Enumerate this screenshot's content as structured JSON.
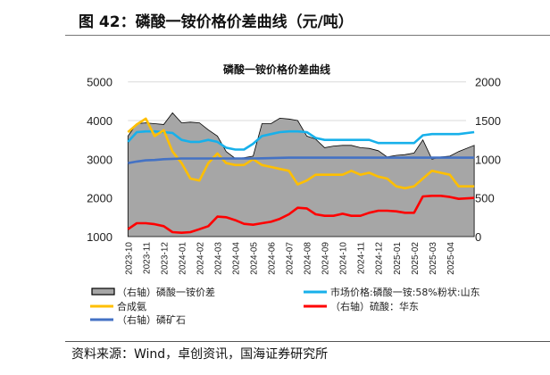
{
  "figure_title": "图 42：磷酸一铵价格价差曲线（元/吨）",
  "source": "资料来源：Wind，卓创资讯，国海证券研究所",
  "chart_data": {
    "type": "line",
    "title": "磷酸一铵价格价差曲线",
    "left_axis": {
      "ylim": [
        1000,
        5000
      ],
      "ticks": [
        "1000",
        "2000",
        "3000",
        "4000",
        "5000"
      ]
    },
    "right_axis": {
      "ylim": [
        0,
        2000
      ],
      "ticks": [
        "0",
        "500",
        "1000",
        "1500",
        "2000"
      ]
    },
    "x_ticks": [
      "2023-10",
      "2023-11",
      "2023-12",
      "2024-01",
      "2024-02",
      "2024-03",
      "2024-04",
      "2024-05",
      "2024-06",
      "2024-07",
      "2024-08",
      "2024-09",
      "2024-10",
      "2024-11",
      "2024-12",
      "2025-01",
      "2025-02",
      "2025-03",
      "2025-04"
    ],
    "grid": "horizontal",
    "legend_placement": "bottom",
    "x": [
      "2023-10-01",
      "2023-10-16",
      "2023-11-01",
      "2023-11-16",
      "2023-12-01",
      "2023-12-16",
      "2024-01-01",
      "2024-01-16",
      "2024-02-01",
      "2024-02-16",
      "2024-03-01",
      "2024-03-16",
      "2024-04-01",
      "2024-04-16",
      "2024-05-01",
      "2024-05-16",
      "2024-06-01",
      "2024-06-16",
      "2024-07-01",
      "2024-07-16",
      "2024-08-01",
      "2024-08-16",
      "2024-09-01",
      "2024-09-16",
      "2024-10-01",
      "2024-10-16",
      "2024-11-01",
      "2024-11-16",
      "2024-12-01",
      "2024-12-16",
      "2025-01-01",
      "2025-01-16",
      "2025-02-01",
      "2025-02-16",
      "2025-03-01",
      "2025-03-16",
      "2025-04-01",
      "2025-04-16",
      "2025-05-12"
    ],
    "series": [
      {
        "name": "（右轴）磷酸一铵价差",
        "axis": "right",
        "kind": "area",
        "color": "#a6a6a6",
        "values": [
          1300,
          1460,
          1470,
          1460,
          1450,
          1600,
          1470,
          1480,
          1470,
          1380,
          1300,
          1100,
          1010,
          1020,
          1040,
          1460,
          1460,
          1530,
          1520,
          1500,
          1300,
          1260,
          1150,
          1170,
          1180,
          1180,
          1150,
          1140,
          1110,
          1030,
          1050,
          1060,
          1080,
          1250,
          1000,
          1030,
          1040,
          1100,
          1180
        ]
      },
      {
        "name": "市场价格:磷酸一铵:58%粉状:山东",
        "axis": "left",
        "kind": "line",
        "color": "#17b0ea",
        "values": [
          3450,
          3700,
          3720,
          3720,
          3700,
          3680,
          3500,
          3450,
          3450,
          3500,
          3450,
          3300,
          3250,
          3250,
          3400,
          3600,
          3650,
          3700,
          3720,
          3720,
          3700,
          3550,
          3500,
          3500,
          3500,
          3500,
          3500,
          3500,
          3420,
          3420,
          3420,
          3420,
          3420,
          3620,
          3650,
          3650,
          3650,
          3650,
          3700
        ]
      },
      {
        "name": "合成氨",
        "axis": "left",
        "kind": "line",
        "color": "#ffbf00",
        "values": [
          3700,
          3900,
          4050,
          3600,
          3750,
          3200,
          2900,
          2500,
          2450,
          2900,
          3150,
          2900,
          2850,
          2850,
          3000,
          2850,
          2800,
          2750,
          2700,
          2350,
          2450,
          2600,
          2600,
          2600,
          2600,
          2700,
          2600,
          2650,
          2550,
          2500,
          2300,
          2250,
          2300,
          2500,
          2700,
          2650,
          2600,
          2300,
          2300
        ]
      },
      {
        "name": "（右轴）硫酸：华东",
        "axis": "right",
        "kind": "line",
        "color": "#ff0000",
        "values": [
          96,
          173,
          173,
          160,
          135,
          58,
          50,
          58,
          96,
          135,
          258,
          250,
          212,
          165,
          154,
          173,
          192,
          230,
          288,
          373,
          365,
          288,
          269,
          269,
          296,
          269,
          269,
          308,
          335,
          335,
          327,
          308,
          308,
          519,
          527,
          527,
          512,
          488,
          500
        ]
      },
      {
        "name": "（右轴）磷矿石",
        "axis": "right",
        "kind": "line",
        "color": "#4472c4",
        "values": [
          950,
          970,
          985,
          990,
          1000,
          1005,
          1010,
          1010,
          1010,
          1010,
          1010,
          1010,
          1010,
          1010,
          1010,
          1012,
          1015,
          1018,
          1020,
          1020,
          1020,
          1020,
          1020,
          1020,
          1020,
          1020,
          1020,
          1020,
          1020,
          1020,
          1020,
          1020,
          1020,
          1020,
          1020,
          1020,
          1020,
          1020,
          1020
        ]
      }
    ]
  }
}
